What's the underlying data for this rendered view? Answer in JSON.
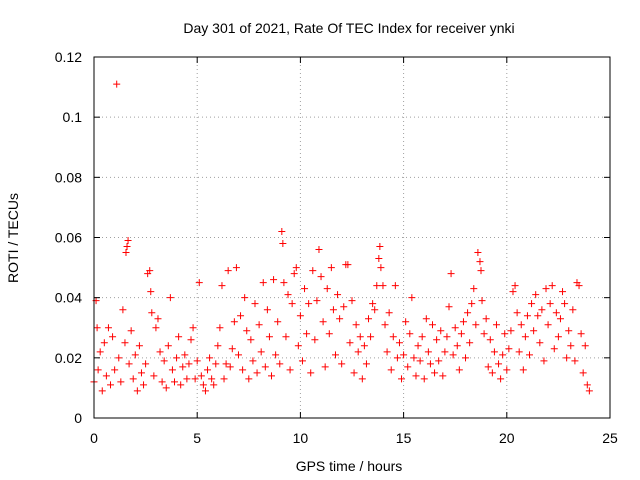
{
  "chart_data": {
    "type": "scatter",
    "title": "Day 301 of 2021, Rate Of TEC Index for receiver ynki",
    "xlabel": "GPS time / hours",
    "ylabel": "ROTI / TECUs",
    "xlim": [
      0,
      25
    ],
    "ylim": [
      0,
      0.12
    ],
    "xticks": [
      0,
      5,
      10,
      15,
      20,
      25
    ],
    "xtick_labels": [
      "0",
      "5",
      "10",
      "15",
      "20",
      "25"
    ],
    "yticks": [
      0,
      0.02,
      0.04,
      0.06,
      0.08,
      0.1,
      0.12
    ],
    "ytick_labels": [
      "0",
      "0.02",
      "0.04",
      "0.06",
      "0.08",
      "0.1",
      "0.12"
    ],
    "grid": true,
    "marker": "+",
    "series": [
      {
        "name": "ROTI",
        "color": "#ff0000",
        "points": [
          [
            0.0,
            0.012
          ],
          [
            0.1,
            0.039
          ],
          [
            0.15,
            0.03
          ],
          [
            0.2,
            0.016
          ],
          [
            0.3,
            0.022
          ],
          [
            0.4,
            0.009
          ],
          [
            0.5,
            0.025
          ],
          [
            0.6,
            0.014
          ],
          [
            0.7,
            0.03
          ],
          [
            0.8,
            0.011
          ],
          [
            0.9,
            0.027
          ],
          [
            1.0,
            0.016
          ],
          [
            1.1,
            0.111
          ],
          [
            1.2,
            0.02
          ],
          [
            1.3,
            0.012
          ],
          [
            1.4,
            0.036
          ],
          [
            1.5,
            0.025
          ],
          [
            1.55,
            0.055
          ],
          [
            1.6,
            0.057
          ],
          [
            1.65,
            0.059
          ],
          [
            1.7,
            0.018
          ],
          [
            1.8,
            0.029
          ],
          [
            1.9,
            0.013
          ],
          [
            2.0,
            0.021
          ],
          [
            2.1,
            0.009
          ],
          [
            2.2,
            0.024
          ],
          [
            2.3,
            0.015
          ],
          [
            2.4,
            0.011
          ],
          [
            2.5,
            0.018
          ],
          [
            2.6,
            0.048
          ],
          [
            2.7,
            0.049
          ],
          [
            2.75,
            0.042
          ],
          [
            2.8,
            0.035
          ],
          [
            2.9,
            0.014
          ],
          [
            3.0,
            0.03
          ],
          [
            3.1,
            0.033
          ],
          [
            3.2,
            0.022
          ],
          [
            3.3,
            0.012
          ],
          [
            3.4,
            0.019
          ],
          [
            3.5,
            0.01
          ],
          [
            3.6,
            0.024
          ],
          [
            3.7,
            0.04
          ],
          [
            3.8,
            0.016
          ],
          [
            3.9,
            0.012
          ],
          [
            4.0,
            0.02
          ],
          [
            4.1,
            0.027
          ],
          [
            4.2,
            0.011
          ],
          [
            4.3,
            0.017
          ],
          [
            4.4,
            0.021
          ],
          [
            4.5,
            0.013
          ],
          [
            4.6,
            0.018
          ],
          [
            4.7,
            0.026
          ],
          [
            4.8,
            0.03
          ],
          [
            4.9,
            0.013
          ],
          [
            5.0,
            0.019
          ],
          [
            5.1,
            0.045
          ],
          [
            5.2,
            0.014
          ],
          [
            5.3,
            0.011
          ],
          [
            5.4,
            0.009
          ],
          [
            5.5,
            0.016
          ],
          [
            5.6,
            0.02
          ],
          [
            5.7,
            0.013
          ],
          [
            5.8,
            0.011
          ],
          [
            5.9,
            0.018
          ],
          [
            6.0,
            0.024
          ],
          [
            6.1,
            0.03
          ],
          [
            6.2,
            0.044
          ],
          [
            6.3,
            0.013
          ],
          [
            6.4,
            0.018
          ],
          [
            6.5,
            0.049
          ],
          [
            6.6,
            0.017
          ],
          [
            6.7,
            0.023
          ],
          [
            6.8,
            0.032
          ],
          [
            6.9,
            0.05
          ],
          [
            7.0,
            0.021
          ],
          [
            7.1,
            0.034
          ],
          [
            7.2,
            0.016
          ],
          [
            7.3,
            0.04
          ],
          [
            7.4,
            0.029
          ],
          [
            7.5,
            0.013
          ],
          [
            7.6,
            0.026
          ],
          [
            7.7,
            0.019
          ],
          [
            7.8,
            0.038
          ],
          [
            7.9,
            0.015
          ],
          [
            8.0,
            0.031
          ],
          [
            8.1,
            0.022
          ],
          [
            8.2,
            0.045
          ],
          [
            8.3,
            0.017
          ],
          [
            8.4,
            0.036
          ],
          [
            8.5,
            0.027
          ],
          [
            8.6,
            0.014
          ],
          [
            8.7,
            0.046
          ],
          [
            8.8,
            0.021
          ],
          [
            8.9,
            0.032
          ],
          [
            9.0,
            0.018
          ],
          [
            9.1,
            0.062
          ],
          [
            9.15,
            0.058
          ],
          [
            9.2,
            0.045
          ],
          [
            9.3,
            0.027
          ],
          [
            9.4,
            0.041
          ],
          [
            9.5,
            0.016
          ],
          [
            9.6,
            0.038
          ],
          [
            9.7,
            0.048
          ],
          [
            9.8,
            0.05
          ],
          [
            9.9,
            0.024
          ],
          [
            10.0,
            0.034
          ],
          [
            10.1,
            0.019
          ],
          [
            10.2,
            0.043
          ],
          [
            10.3,
            0.028
          ],
          [
            10.4,
            0.038
          ],
          [
            10.5,
            0.015
          ],
          [
            10.6,
            0.049
          ],
          [
            10.7,
            0.026
          ],
          [
            10.8,
            0.039
          ],
          [
            10.9,
            0.056
          ],
          [
            11.0,
            0.047
          ],
          [
            11.1,
            0.032
          ],
          [
            11.2,
            0.017
          ],
          [
            11.3,
            0.043
          ],
          [
            11.4,
            0.028
          ],
          [
            11.5,
            0.05
          ],
          [
            11.6,
            0.036
          ],
          [
            11.7,
            0.021
          ],
          [
            11.8,
            0.041
          ],
          [
            11.9,
            0.033
          ],
          [
            12.0,
            0.018
          ],
          [
            12.1,
            0.037
          ],
          [
            12.2,
            0.051
          ],
          [
            12.3,
            0.051
          ],
          [
            12.4,
            0.025
          ],
          [
            12.5,
            0.039
          ],
          [
            12.6,
            0.015
          ],
          [
            12.7,
            0.031
          ],
          [
            12.8,
            0.022
          ],
          [
            12.9,
            0.027
          ],
          [
            13.0,
            0.013
          ],
          [
            13.1,
            0.024
          ],
          [
            13.2,
            0.018
          ],
          [
            13.3,
            0.033
          ],
          [
            13.4,
            0.027
          ],
          [
            13.5,
            0.038
          ],
          [
            13.6,
            0.036
          ],
          [
            13.7,
            0.044
          ],
          [
            13.8,
            0.053
          ],
          [
            13.85,
            0.057
          ],
          [
            13.9,
            0.05
          ],
          [
            14.0,
            0.044
          ],
          [
            14.1,
            0.031
          ],
          [
            14.2,
            0.022
          ],
          [
            14.3,
            0.035
          ],
          [
            14.4,
            0.016
          ],
          [
            14.5,
            0.027
          ],
          [
            14.6,
            0.044
          ],
          [
            14.7,
            0.02
          ],
          [
            14.8,
            0.025
          ],
          [
            14.9,
            0.013
          ],
          [
            15.0,
            0.021
          ],
          [
            15.1,
            0.032
          ],
          [
            15.2,
            0.017
          ],
          [
            15.3,
            0.028
          ],
          [
            15.4,
            0.04
          ],
          [
            15.5,
            0.02
          ],
          [
            15.6,
            0.014
          ],
          [
            15.7,
            0.024
          ],
          [
            15.8,
            0.019
          ],
          [
            15.9,
            0.027
          ],
          [
            16.0,
            0.013
          ],
          [
            16.1,
            0.033
          ],
          [
            16.2,
            0.022
          ],
          [
            16.3,
            0.018
          ],
          [
            16.4,
            0.031
          ],
          [
            16.5,
            0.015
          ],
          [
            16.6,
            0.026
          ],
          [
            16.7,
            0.019
          ],
          [
            16.8,
            0.029
          ],
          [
            16.9,
            0.014
          ],
          [
            17.0,
            0.022
          ],
          [
            17.1,
            0.027
          ],
          [
            17.2,
            0.037
          ],
          [
            17.3,
            0.048
          ],
          [
            17.4,
            0.021
          ],
          [
            17.5,
            0.03
          ],
          [
            17.6,
            0.024
          ],
          [
            17.7,
            0.016
          ],
          [
            17.8,
            0.028
          ],
          [
            17.9,
            0.032
          ],
          [
            18.0,
            0.02
          ],
          [
            18.1,
            0.035
          ],
          [
            18.2,
            0.025
          ],
          [
            18.3,
            0.038
          ],
          [
            18.4,
            0.043
          ],
          [
            18.5,
            0.031
          ],
          [
            18.6,
            0.055
          ],
          [
            18.7,
            0.052
          ],
          [
            18.75,
            0.049
          ],
          [
            18.8,
            0.039
          ],
          [
            18.9,
            0.028
          ],
          [
            19.0,
            0.033
          ],
          [
            19.1,
            0.017
          ],
          [
            19.2,
            0.026
          ],
          [
            19.3,
            0.015
          ],
          [
            19.4,
            0.022
          ],
          [
            19.5,
            0.031
          ],
          [
            19.6,
            0.018
          ],
          [
            19.7,
            0.013
          ],
          [
            19.8,
            0.021
          ],
          [
            19.9,
            0.028
          ],
          [
            20.0,
            0.016
          ],
          [
            20.1,
            0.023
          ],
          [
            20.2,
            0.029
          ],
          [
            20.3,
            0.042
          ],
          [
            20.4,
            0.044
          ],
          [
            20.5,
            0.035
          ],
          [
            20.6,
            0.022
          ],
          [
            20.7,
            0.031
          ],
          [
            20.8,
            0.016
          ],
          [
            20.9,
            0.027
          ],
          [
            21.0,
            0.034
          ],
          [
            21.1,
            0.021
          ],
          [
            21.2,
            0.038
          ],
          [
            21.3,
            0.029
          ],
          [
            21.4,
            0.041
          ],
          [
            21.5,
            0.034
          ],
          [
            21.6,
            0.025
          ],
          [
            21.7,
            0.036
          ],
          [
            21.8,
            0.019
          ],
          [
            21.9,
            0.043
          ],
          [
            22.0,
            0.031
          ],
          [
            22.1,
            0.038
          ],
          [
            22.2,
            0.044
          ],
          [
            22.3,
            0.023
          ],
          [
            22.4,
            0.035
          ],
          [
            22.5,
            0.027
          ],
          [
            22.6,
            0.033
          ],
          [
            22.7,
            0.042
          ],
          [
            22.8,
            0.038
          ],
          [
            22.9,
            0.02
          ],
          [
            23.0,
            0.029
          ],
          [
            23.1,
            0.024
          ],
          [
            23.2,
            0.036
          ],
          [
            23.3,
            0.019
          ],
          [
            23.4,
            0.045
          ],
          [
            23.5,
            0.044
          ],
          [
            23.6,
            0.028
          ],
          [
            23.7,
            0.015
          ],
          [
            23.8,
            0.024
          ],
          [
            23.9,
            0.011
          ],
          [
            24.0,
            0.009
          ]
        ]
      }
    ]
  }
}
